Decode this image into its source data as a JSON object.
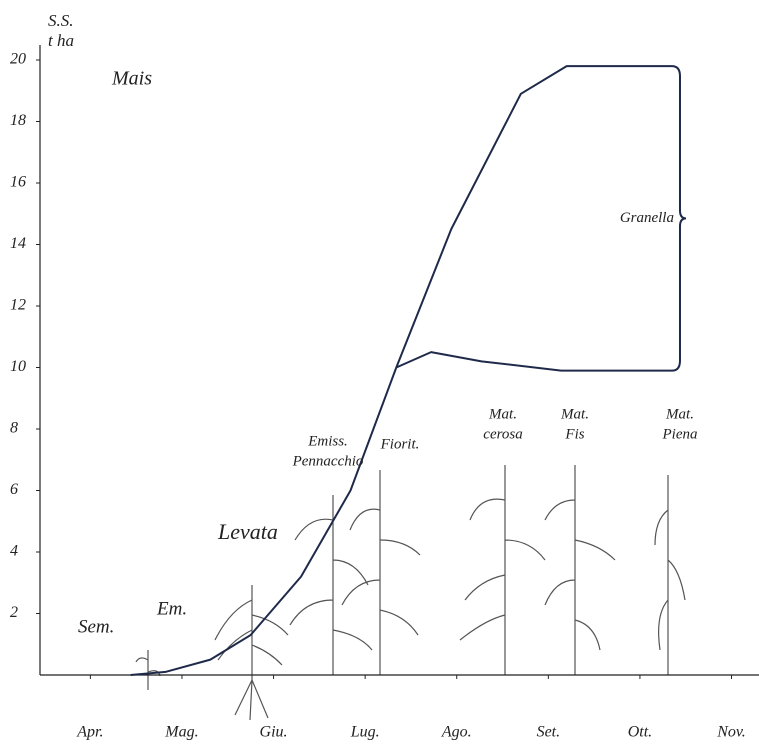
{
  "chart_data": {
    "type": "line",
    "title": "Mais",
    "y_label": [
      "S.S.",
      "t ha"
    ],
    "categories": [
      "Apr.",
      "Mag.",
      "Giu.",
      "Lug.",
      "Ago.",
      "Set.",
      "Ott.",
      "Nov."
    ],
    "xlim": [
      -0.55,
      7.3
    ],
    "ylim": [
      0,
      20
    ],
    "yticks": [
      2,
      4,
      6,
      8,
      10,
      12,
      14,
      16,
      18,
      20
    ],
    "series": [
      {
        "color": "#1f2a4a",
        "x": [
          0.44,
          0.82,
          1.31,
          1.75,
          2.3,
          2.84,
          3.34,
          3.94,
          4.7,
          5.2,
          6.35
        ],
        "values": [
          0,
          0.1,
          0.5,
          1.3,
          3.2,
          6.0,
          10,
          14.5,
          18.9,
          19.8,
          19.8
        ]
      },
      {
        "color": "#1f2a4a",
        "x": [
          3.34,
          3.72,
          4.27,
          5.14,
          6.35
        ],
        "values": [
          10,
          10.5,
          10.2,
          9.9,
          9.9
        ]
      }
    ],
    "bracket_label": "Granella",
    "stages": [
      [
        "Sem."
      ],
      [
        "Em."
      ],
      [
        "Levata"
      ],
      [
        "Emiss.",
        "Pennacchio"
      ],
      [
        "Fiorit."
      ],
      [
        "Mat.",
        "cerosa"
      ],
      [
        "Mat.",
        "Fis"
      ],
      [
        "Mat.",
        "Piena"
      ]
    ]
  }
}
